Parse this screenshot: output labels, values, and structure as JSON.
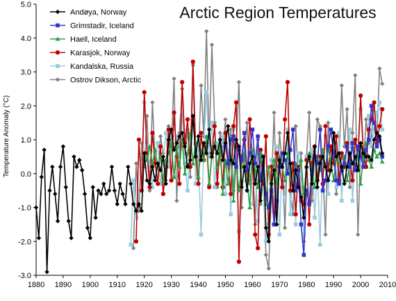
{
  "chart_data": {
    "type": "line",
    "title": "Arctic Region Temperatures",
    "xlabel": "",
    "ylabel": "Temperature Anomaly (°C)",
    "xlim": [
      1880,
      2010
    ],
    "ylim": [
      -3.0,
      5.0
    ],
    "x_ticks": [
      "1880",
      "1890",
      "1900",
      "1910",
      "1920",
      "1930",
      "1940",
      "1950",
      "1960",
      "1970",
      "1980",
      "1990",
      "2000",
      "2010"
    ],
    "y_ticks": [
      "-3.0",
      "-2.0",
      "-1.0",
      "0.0",
      "1.0",
      "2.0",
      "3.0",
      "4.0",
      "5.0"
    ],
    "grid": false,
    "legend_position": "top-left",
    "series": [
      {
        "name": "Andøya, Norway",
        "color": "#000000",
        "marker": "diamond",
        "x": [
          1880,
          1881,
          1882,
          1883,
          1884,
          1885,
          1886,
          1887,
          1888,
          1889,
          1890,
          1891,
          1892,
          1893,
          1894,
          1895,
          1896,
          1897,
          1898,
          1899,
          1900,
          1901,
          1902,
          1903,
          1904,
          1905,
          1906,
          1907,
          1908,
          1909,
          1910,
          1911,
          1912,
          1913,
          1914,
          1915,
          1916,
          1917,
          1918,
          1919,
          1920,
          1921,
          1922,
          1923,
          1924,
          1925,
          1926,
          1927,
          1928,
          1929,
          1930,
          1931,
          1932,
          1933,
          1934,
          1935,
          1936,
          1937,
          1938,
          1939,
          1940,
          1941,
          1942,
          1943,
          1944,
          1945,
          1946,
          1947,
          1948,
          1949,
          1950,
          1951,
          1952,
          1953,
          1954,
          1955,
          1956,
          1957,
          1958,
          1959,
          1960,
          1961,
          1962,
          1963,
          1964,
          1965,
          1966,
          1967,
          1968,
          1969,
          1970,
          1971,
          1972,
          1973,
          1974,
          1975,
          1976,
          1977,
          1978,
          1979,
          1980,
          1981,
          1982,
          1983,
          1984,
          1985,
          1986,
          1987,
          1988,
          1989,
          1990,
          1991,
          1992,
          1993,
          1994,
          1995,
          1996,
          1997,
          1998,
          1999,
          2000,
          2001,
          2002,
          2003,
          2004,
          2005,
          2006,
          2007,
          2008
        ],
        "values": [
          -1.0,
          -1.9,
          -0.1,
          0.7,
          -2.9,
          -0.5,
          0.2,
          -0.6,
          -1.4,
          0.2,
          0.8,
          -0.4,
          -1.4,
          -1.9,
          0.5,
          0.2,
          0.4,
          0.1,
          -0.6,
          -1.6,
          -1.9,
          -0.4,
          -1.3,
          -0.5,
          -0.6,
          -0.3,
          -0.6,
          -0.5,
          0.2,
          -0.5,
          -0.9,
          -0.3,
          -0.6,
          -0.9,
          0.2,
          -0.3,
          -0.9,
          -1.1,
          -0.9,
          -1.1,
          0.6,
          -0.2,
          -0.3,
          0.2,
          -0.2,
          0.3,
          0.1,
          0.5,
          -0.3,
          1.0,
          1.3,
          0.7,
          0.9,
          1.1,
          1.2,
          0.8,
          0.2,
          0.4,
          1.7,
          0.5,
          1.1,
          0.4,
          0.9,
          0.6,
          1.3,
          0.5,
          0.8,
          0.6,
          1.0,
          0.4,
          0.9,
          1.4,
          0.4,
          0.3,
          1.0,
          0.8,
          -0.4,
          0.2,
          -0.5,
          0.3,
          0.5,
          -0.3,
          0.2,
          -0.8,
          0.5,
          -1.6,
          -2.0,
          -0.3,
          0.1,
          -1.5,
          0.4,
          0.2,
          0.6,
          1.2,
          0.3,
          -0.5,
          0.1,
          -0.4,
          -0.7,
          -1.3,
          0.2,
          0.5,
          -0.3,
          0.8,
          -0.4,
          0.3,
          0.5,
          0.2,
          -0.2,
          0.1,
          1.2,
          0.5,
          0.6,
          0.2,
          -0.3,
          0.2,
          0.6,
          0.3,
          0.5,
          0.1,
          0.9,
          0.6,
          0.5,
          0.5,
          0.4,
          1.0,
          1.2,
          1.1,
          0.6
        ]
      },
      {
        "name": "Grimstadir, Iceland",
        "color": "#3333cc",
        "marker": "square",
        "x": [
          1950,
          1951,
          1952,
          1953,
          1954,
          1955,
          1956,
          1957,
          1958,
          1959,
          1960,
          1961,
          1962,
          1963,
          1964,
          1965,
          1966,
          1967,
          1968,
          1969,
          1970,
          1971,
          1972,
          1973,
          1974,
          1975,
          1976,
          1977,
          1978,
          1979,
          1980,
          1981,
          1982,
          1983,
          1984,
          1985,
          1986,
          1987,
          1988,
          1989,
          1990,
          1991,
          1992,
          1993,
          1994,
          1995,
          1996,
          1997,
          1998,
          1999,
          2000,
          2001,
          2002,
          2003,
          2004,
          2005,
          2006,
          2007,
          2008
        ],
        "values": [
          0.8,
          0.3,
          1.0,
          1.1,
          0.2,
          0.7,
          0.4,
          1.2,
          0.1,
          0.6,
          1.3,
          0.3,
          1.1,
          -0.2,
          0.5,
          -0.6,
          -1.0,
          -0.5,
          -1.5,
          -0.8,
          0.2,
          0.6,
          0.4,
          0.0,
          0.7,
          1.3,
          -0.5,
          0.1,
          -1.5,
          -2.4,
          -0.5,
          -0.9,
          0.1,
          0.5,
          0.3,
          1.3,
          -0.5,
          -0.2,
          0.8,
          1.3,
          0.6,
          -0.2,
          -0.3,
          0.1,
          0.3,
          0.8,
          0.2,
          0.9,
          0.1,
          0.8,
          0.5,
          0.2,
          0.7,
          1.0,
          2.0,
          1.5,
          0.8,
          1.0,
          0.5
        ]
      },
      {
        "name": "Haell, Iceland",
        "color": "#2f9e44",
        "marker": "triangle",
        "x": [
          1920,
          1921,
          1922,
          1923,
          1924,
          1925,
          1926,
          1927,
          1928,
          1929,
          1930,
          1931,
          1932,
          1933,
          1934,
          1935,
          1936,
          1937,
          1938,
          1939,
          1940,
          1941,
          1942,
          1943,
          1944,
          1945,
          1946,
          1947,
          1948,
          1949,
          1950,
          1951,
          1952,
          1953,
          1954,
          1955,
          1956,
          1957,
          1958,
          1959,
          1960,
          1961,
          1962,
          1963,
          1964,
          1965,
          1966,
          1967,
          1968,
          1969,
          1970,
          1971,
          1972,
          1973,
          1974,
          1975,
          1976,
          1977,
          1978,
          1979,
          1980,
          1981,
          1982,
          1983,
          1984,
          1985,
          1986,
          1987,
          1988,
          1989,
          1990,
          1991,
          1992,
          1993,
          1994,
          1995,
          1996,
          1997,
          1998,
          1999,
          2000,
          2001,
          2002,
          2003,
          2004,
          2005,
          2006,
          2007,
          2008
        ],
        "values": [
          0.6,
          0.4,
          0.8,
          0.3,
          0.7,
          0.2,
          0.5,
          -0.2,
          0.4,
          0.6,
          0.9,
          -0.1,
          0.8,
          0.2,
          1.0,
          0.0,
          0.6,
          1.2,
          0.3,
          0.9,
          -0.1,
          0.7,
          0.4,
          1.1,
          -0.3,
          0.5,
          0.9,
          0.2,
          0.8,
          -0.6,
          0.4,
          -0.3,
          0.5,
          -0.8,
          0.3,
          -0.5,
          0.2,
          0.6,
          -0.2,
          -1.0,
          0.7,
          0.1,
          -0.4,
          0.6,
          -0.1,
          -0.9,
          0.2,
          -0.6,
          0.4,
          -0.3,
          0.5,
          0.2,
          -0.2,
          0.6,
          0.0,
          -0.5,
          0.3,
          -0.1,
          0.4,
          -0.6,
          0.2,
          0.6,
          0.0,
          -0.4,
          0.5,
          0.1,
          0.7,
          0.2,
          0.8,
          0.3,
          -0.2,
          0.4,
          0.6,
          0.1,
          0.5,
          -0.2,
          0.3,
          0.8,
          0.2,
          0.6,
          -0.3,
          0.5,
          0.9,
          0.4,
          0.2,
          0.7,
          0.5,
          0.6,
          0.35
        ]
      },
      {
        "name": "Karasjok, Norway",
        "color": "#c00000",
        "marker": "circle",
        "x": [
          1917,
          1918,
          1919,
          1920,
          1921,
          1922,
          1923,
          1924,
          1925,
          1926,
          1927,
          1928,
          1929,
          1930,
          1931,
          1932,
          1933,
          1934,
          1935,
          1936,
          1937,
          1938,
          1939,
          1940,
          1941,
          1942,
          1943,
          1944,
          1945,
          1946,
          1947,
          1948,
          1949,
          1950,
          1951,
          1952,
          1953,
          1954,
          1955,
          1956,
          1957,
          1958,
          1959,
          1960,
          1961,
          1962,
          1963,
          1964,
          1965,
          1966,
          1967,
          1968,
          1969,
          1970,
          1971,
          1972,
          1973,
          1974,
          1975,
          1976,
          1977,
          1978,
          1979,
          1980,
          1981,
          1982,
          1983,
          1984,
          1985,
          1986,
          1987,
          1988,
          1989,
          1990,
          1991,
          1992,
          1993,
          1994,
          1995,
          1996,
          1997,
          1998,
          1999,
          2000,
          2001,
          2002,
          2003,
          2004,
          2005,
          2006,
          2007,
          2008
        ],
        "values": [
          -2.0,
          1.0,
          -0.5,
          2.4,
          0.6,
          -0.4,
          1.2,
          0.3,
          -0.3,
          0.8,
          -0.6,
          0.2,
          1.3,
          -0.2,
          1.8,
          0.5,
          -0.3,
          2.7,
          0.9,
          1.6,
          0.2,
          3.3,
          0.5,
          -0.3,
          1.2,
          0.4,
          0.9,
          -0.4,
          0.6,
          1.4,
          -0.3,
          0.8,
          -0.4,
          1.2,
          0.3,
          -0.6,
          1.4,
          2.1,
          -2.6,
          0.5,
          1.0,
          -0.2,
          1.6,
          0.4,
          -1.8,
          -2.2,
          0.7,
          -0.3,
          1.1,
          -1.8,
          0.2,
          -1.5,
          0.6,
          0.2,
          -0.4,
          1.6,
          2.7,
          -0.5,
          0.3,
          -1.2,
          0.2,
          -0.8,
          -0.9,
          0.4,
          -1.5,
          0.3,
          0.8,
          -0.2,
          0.5,
          -0.3,
          1.4,
          0.1,
          0.8,
          0.3,
          1.1,
          -0.2,
          0.6,
          0.2,
          0.9,
          0.4,
          -0.2,
          1.0,
          0.5,
          2.3,
          0.6,
          0.2,
          1.3,
          1.6,
          2.1,
          0.9,
          1.4,
          1.9
        ]
      },
      {
        "name": "Kandalska, Russia",
        "color": "#99ccdd",
        "marker": "square",
        "x": [
          1915,
          1916,
          1917,
          1918,
          1919,
          1920,
          1921,
          1922,
          1923,
          1924,
          1925,
          1926,
          1927,
          1928,
          1929,
          1930,
          1931,
          1932,
          1933,
          1934,
          1935,
          1936,
          1937,
          1938,
          1939,
          1940,
          1941,
          1942,
          1943,
          1944,
          1945,
          1946,
          1947,
          1948,
          1949,
          1950,
          1951,
          1952,
          1953,
          1954,
          1955,
          1956,
          1957,
          1958,
          1959,
          1960,
          1961,
          1962,
          1963,
          1964,
          1965,
          1966,
          1967,
          1968,
          1969,
          1970,
          1971,
          1972,
          1973,
          1974,
          1975,
          1976,
          1977,
          1978,
          1979,
          1980,
          1981,
          1982,
          1983,
          1984,
          1985,
          1986,
          1987,
          1988,
          1989,
          1990,
          1991,
          1992,
          1993,
          1994,
          1995,
          1996,
          1997,
          1998,
          1999,
          2000,
          2001,
          2002,
          2003,
          2004,
          2005,
          2006,
          2007,
          2008
        ],
        "values": [
          -2.1,
          -0.2,
          -1.3,
          -0.5,
          0.3,
          2.1,
          0.8,
          0.3,
          -0.4,
          0.6,
          0.9,
          -0.3,
          0.4,
          1.2,
          0.2,
          0.7,
          -0.1,
          1.1,
          0.5,
          1.8,
          0.3,
          -0.5,
          0.9,
          3.3,
          -0.3,
          0.6,
          -1.8,
          0.8,
          2.4,
          0.5,
          1.5,
          -0.4,
          0.9,
          0.3,
          1.1,
          -0.6,
          0.7,
          -1.2,
          1.3,
          0.4,
          -1.7,
          0.2,
          0.8,
          -0.5,
          1.0,
          -0.9,
          0.3,
          -1.4,
          0.6,
          -0.3,
          -2.0,
          -1.5,
          0.4,
          -1.1,
          0.8,
          -1.8,
          0.5,
          -0.7,
          1.3,
          -1.2,
          0.2,
          -1.5,
          0.6,
          -0.3,
          -1.8,
          0.5,
          -0.9,
          0.7,
          -1.3,
          0.2,
          -2.1,
          0.4,
          1.1,
          -0.6,
          0.8,
          0.3,
          -0.4,
          1.2,
          -0.8,
          0.5,
          0.2,
          1.3,
          -0.8,
          0.7,
          0.4,
          1.9,
          0.6,
          0.2,
          1.7,
          0.8,
          1.3,
          1.8,
          2.1,
          1.3
        ]
      },
      {
        "name": "Ostrov Dikson, Arctic",
        "color": "#808080",
        "marker": "diamond",
        "x": [
          1916,
          1917,
          1918,
          1919,
          1920,
          1921,
          1922,
          1923,
          1924,
          1925,
          1926,
          1927,
          1928,
          1929,
          1930,
          1931,
          1932,
          1933,
          1934,
          1935,
          1936,
          1937,
          1938,
          1939,
          1940,
          1941,
          1942,
          1943,
          1944,
          1945,
          1946,
          1947,
          1948,
          1949,
          1950,
          1951,
          1952,
          1953,
          1954,
          1955,
          1956,
          1957,
          1958,
          1959,
          1960,
          1961,
          1962,
          1963,
          1964,
          1965,
          1966,
          1967,
          1968,
          1969,
          1970,
          1971,
          1972,
          1973,
          1974,
          1975,
          1976,
          1977,
          1978,
          1979,
          1980,
          1981,
          1982,
          1983,
          1984,
          1985,
          1986,
          1987,
          1988,
          1989,
          1990,
          1991,
          1992,
          1993,
          1994,
          1995,
          1996,
          1997,
          1998,
          1999,
          2000,
          2001,
          2002,
          2003,
          2004,
          2005,
          2006,
          2007,
          2008
        ],
        "values": [
          -2.2,
          0.3,
          -1.1,
          0.9,
          0.2,
          1.7,
          -0.5,
          2.1,
          0.4,
          -0.3,
          1.1,
          0.6,
          -0.2,
          1.4,
          0.8,
          2.8,
          -0.8,
          1.2,
          2.5,
          0.6,
          1.3,
          -0.1,
          3.2,
          0.9,
          0.4,
          2.6,
          1.1,
          4.2,
          0.8,
          3.8,
          1.5,
          -0.4,
          1.2,
          0.6,
          1.6,
          0.2,
          1.3,
          -0.5,
          0.8,
          2.7,
          -1.0,
          0.6,
          1.5,
          -0.3,
          0.4,
          -1.5,
          1.0,
          -0.9,
          -0.2,
          -2.4,
          -2.8,
          -0.6,
          1.8,
          -1.0,
          1.2,
          0.3,
          -1.6,
          0.8,
          -0.5,
          -1.2,
          1.4,
          -0.3,
          0.6,
          -2.0,
          0.5,
          1.8,
          -0.8,
          0.4,
          1.6,
          1.4,
          0.1,
          -1.8,
          1.5,
          0.2,
          1.2,
          -0.6,
          0.3,
          2.6,
          0.8,
          1.9,
          -0.4,
          1.2,
          2.9,
          -1.8,
          0.8,
          0.2,
          1.6,
          0.9,
          1.1,
          2.1,
          1.0,
          3.1,
          2.65
        ]
      }
    ]
  }
}
